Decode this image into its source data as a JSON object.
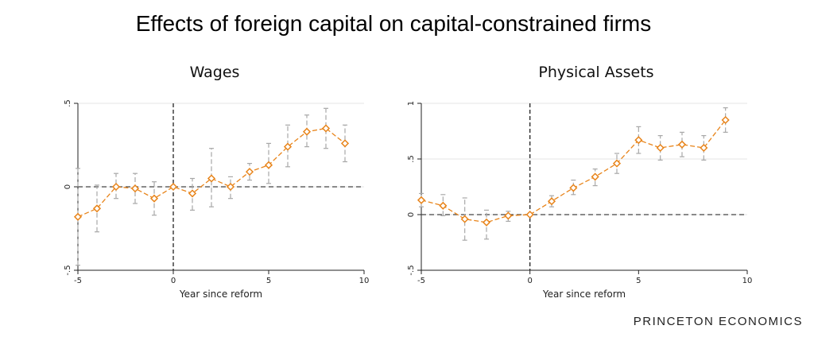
{
  "slide": {
    "title": "Effects of foreign capital on capital-constrained firms",
    "footer": "PRINCETON ECONOMICS"
  },
  "colors": {
    "marker": "#E8841A",
    "ci": "#A8A8A8",
    "grid": "#E6E6E6",
    "refline": "#444444"
  },
  "chart_data": [
    {
      "type": "line",
      "title": "Wages",
      "xlabel": "Year since reform",
      "ylabel": "",
      "xlim": [
        -5,
        10
      ],
      "ylim": [
        -0.5,
        0.5
      ],
      "xticks": [
        -5,
        0,
        5,
        10
      ],
      "xtick_labels": [
        "-5",
        "0",
        "5",
        "10"
      ],
      "yticks": [
        -0.5,
        0,
        0.5
      ],
      "ytick_labels": [
        "-.5",
        "0",
        ".5"
      ],
      "grid": true,
      "x": [
        -5,
        -4,
        -3,
        -2,
        -1,
        0,
        1,
        2,
        3,
        4,
        5,
        6,
        7,
        8,
        9
      ],
      "y": [
        -0.18,
        -0.13,
        0.0,
        -0.01,
        -0.07,
        0.0,
        -0.04,
        0.05,
        0.0,
        0.09,
        0.13,
        0.24,
        0.33,
        0.35,
        0.26
      ],
      "ci_low": [
        -0.47,
        -0.27,
        -0.07,
        -0.1,
        -0.17,
        0.0,
        -0.14,
        -0.12,
        -0.07,
        0.04,
        0.02,
        0.12,
        0.24,
        0.23,
        0.15
      ],
      "ci_high": [
        0.11,
        0.01,
        0.08,
        0.08,
        0.03,
        0.0,
        0.05,
        0.23,
        0.06,
        0.14,
        0.26,
        0.37,
        0.43,
        0.47,
        0.37
      ]
    },
    {
      "type": "line",
      "title": "Physical Assets",
      "xlabel": "Year since reform",
      "ylabel": "",
      "xlim": [
        -5,
        10
      ],
      "ylim": [
        -0.5,
        1
      ],
      "xticks": [
        -5,
        0,
        5,
        10
      ],
      "xtick_labels": [
        "-5",
        "0",
        "5",
        "10"
      ],
      "yticks": [
        -0.5,
        0,
        0.5,
        1
      ],
      "ytick_labels": [
        "-.5",
        "0",
        ".5",
        "1"
      ],
      "grid": true,
      "x": [
        -5,
        -4,
        -3,
        -2,
        -1,
        0,
        1,
        2,
        3,
        4,
        5,
        6,
        7,
        8,
        9
      ],
      "y": [
        0.13,
        0.08,
        -0.04,
        -0.07,
        -0.01,
        0.0,
        0.12,
        0.24,
        0.34,
        0.46,
        0.67,
        0.6,
        0.63,
        0.6,
        0.85
      ],
      "ci_low": [
        0.07,
        -0.01,
        -0.23,
        -0.22,
        -0.06,
        0.0,
        0.07,
        0.18,
        0.26,
        0.37,
        0.55,
        0.49,
        0.52,
        0.49,
        0.74
      ],
      "ci_high": [
        0.19,
        0.18,
        0.15,
        0.04,
        0.03,
        0.0,
        0.17,
        0.31,
        0.41,
        0.55,
        0.79,
        0.71,
        0.74,
        0.71,
        0.96
      ]
    }
  ]
}
